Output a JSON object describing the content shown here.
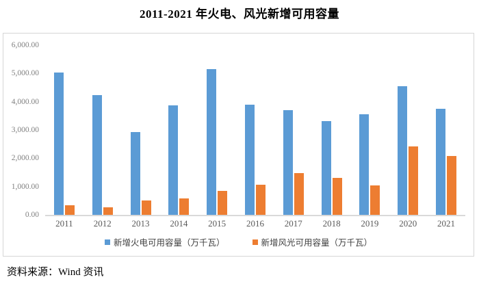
{
  "title": "2011-2021 年火电、风光新增可用容量",
  "source": "资料来源：Wind 资讯",
  "colors": {
    "thermal": "#5b9bd5",
    "wind_solar": "#ed7d31",
    "frame_border": "#d6d6d6",
    "axis_line": "#d9d9d9",
    "y_tick_text": "#808080",
    "x_tick_text": "#595959",
    "legend_text": "#404040"
  },
  "chart_data": {
    "type": "bar",
    "categories": [
      "2011",
      "2012",
      "2013",
      "2014",
      "2015",
      "2016",
      "2017",
      "2018",
      "2019",
      "2020",
      "2021"
    ],
    "series": [
      {
        "name": "新增火电可用容量（万千瓦）",
        "color": "#5b9bd5",
        "values": [
          5030,
          4230,
          2930,
          3860,
          5150,
          3890,
          3690,
          3320,
          3560,
          4560,
          3740
        ]
      },
      {
        "name": "新增风光可用容量（万千瓦）",
        "color": "#ed7d31",
        "values": [
          350,
          260,
          500,
          590,
          840,
          1060,
          1470,
          1310,
          1050,
          2420,
          2070
        ]
      }
    ],
    "title": "2011-2021 年火电、风光新增可用容量",
    "xlabel": "",
    "ylabel": "",
    "ylim": [
      0,
      6000
    ],
    "ytick_step": 1000,
    "ytick_labels": [
      "0.00",
      "1,000.00",
      "2,000.00",
      "3,000.00",
      "4,000.00",
      "5,000.00",
      "6,000.00"
    ],
    "grid": false,
    "legend_position": "bottom"
  }
}
